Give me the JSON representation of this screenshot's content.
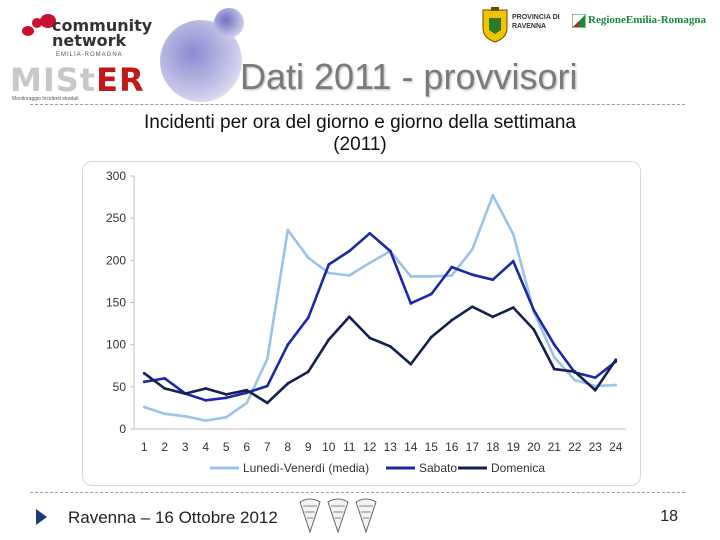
{
  "header": {
    "logo_community": "community",
    "logo_network": "network",
    "logo_region": "EMILIA-ROMAGNA",
    "logo_mister_mi": "MIS",
    "logo_mister_t": "t",
    "logo_mister_er": "ER",
    "logo_mister_sub": "Monitoraggio   Incidenti   stradali",
    "title": "Dati 2011 - provvisori",
    "province_line1": "PROVINCIA DI",
    "province_line2": "RAVENNA",
    "region_name": "RegioneEmilia-Romagna"
  },
  "chart_data": {
    "type": "line",
    "title_line1": "Incidenti per ora del giorno e giorno della settimana",
    "title_line2": "(2011)",
    "xlabel": "",
    "ylabel": "",
    "ylim": [
      0,
      300
    ],
    "yticks": [
      0,
      50,
      100,
      150,
      200,
      250,
      300
    ],
    "grid": false,
    "legend_position": "bottom",
    "categories": [
      1,
      2,
      3,
      4,
      5,
      6,
      7,
      8,
      9,
      10,
      11,
      12,
      13,
      14,
      15,
      16,
      17,
      18,
      19,
      20,
      21,
      22,
      23,
      24
    ],
    "series": [
      {
        "name": "Lunedì-Venerdì (media)",
        "color": "#9cc3e6",
        "values": [
          26,
          18,
          15,
          10,
          14,
          31,
          83,
          236,
          203,
          185,
          182,
          197,
          211,
          181,
          181,
          182,
          213,
          277,
          231,
          139,
          85,
          58,
          51,
          52
        ]
      },
      {
        "name": "Sabato",
        "color": "#1c28a8",
        "values": [
          56,
          60,
          42,
          34,
          37,
          43,
          51,
          100,
          132,
          195,
          211,
          232,
          211,
          149,
          160,
          192,
          183,
          177,
          199,
          141,
          100,
          67,
          61,
          80
        ]
      },
      {
        "name": "Domenica",
        "color": "#14204e",
        "values": [
          66,
          48,
          42,
          48,
          41,
          46,
          31,
          54,
          68,
          106,
          133,
          108,
          98,
          77,
          109,
          129,
          145,
          133,
          144,
          118,
          71,
          68,
          46,
          82
        ]
      }
    ]
  },
  "footer": {
    "text": "Ravenna – 16 Ottobre 2012",
    "page": "18"
  },
  "colors": {
    "title_gray": "#7a7a7a",
    "footer_arrow": "#1e3a78"
  }
}
